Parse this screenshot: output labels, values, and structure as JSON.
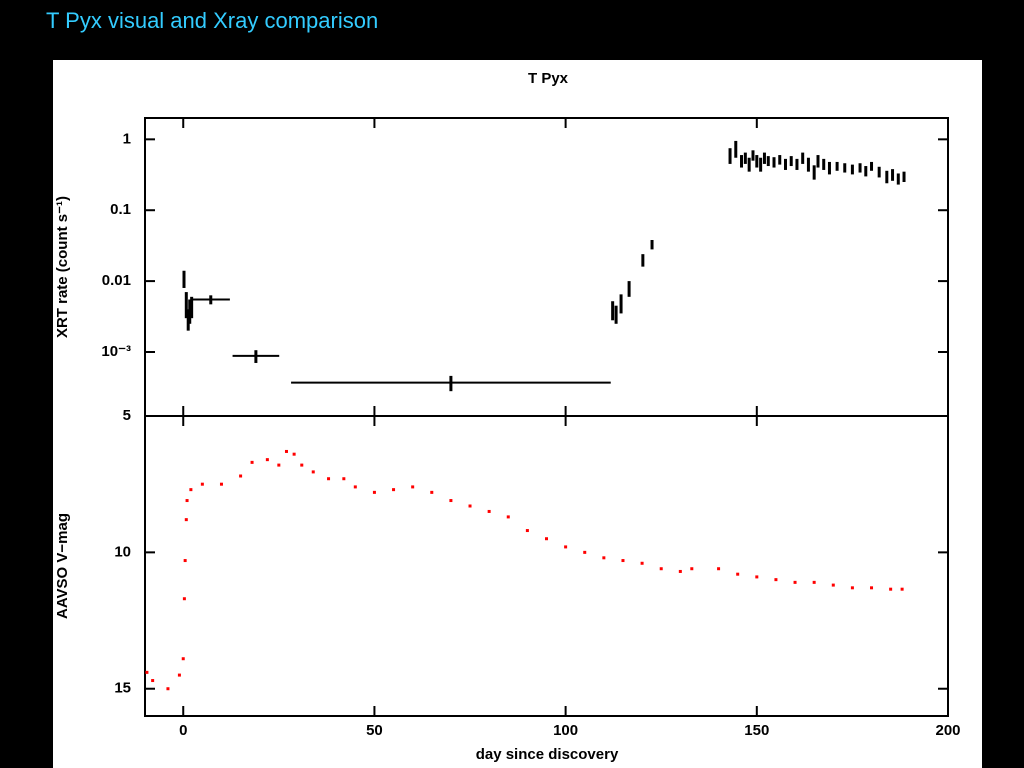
{
  "slide_title": "T Pyx visual and Xray comparison",
  "chart_data": [
    {
      "type": "errorbar",
      "title": "T Pyx",
      "ylabel": "XRT rate (count s⁻¹)",
      "log_y": true,
      "color": "#000000",
      "xlim": [
        -10,
        200
      ],
      "xticks": [
        0,
        50,
        100,
        150,
        200
      ],
      "ylim": [
        0.000125,
        2
      ],
      "yticks": [
        1,
        0.1,
        0.01,
        {
          "value": 0.001,
          "label": "10⁻³"
        }
      ],
      "x": [
        0.2,
        0.8,
        1.3,
        1.7,
        2.2,
        7.2,
        19,
        70,
        112.3,
        113.2,
        114.5,
        116.6,
        120.2,
        122.6,
        143,
        144.5,
        146,
        147,
        148,
        149,
        150,
        151,
        152,
        153,
        154.5,
        156,
        157.5,
        159,
        160.5,
        162,
        163.5,
        165,
        166,
        167.5,
        169,
        171,
        173,
        175,
        177,
        178.5,
        180,
        182,
        184,
        185.5,
        187,
        188.5
      ],
      "values": [
        0.011,
        0.005,
        0.003,
        0.004,
        0.0045,
        0.0055,
        0.00088,
        0.00037,
        0.004,
        0.0035,
        0.005,
        0.008,
        0.02,
        0.033,
        0.6,
        0.75,
        0.5,
        0.55,
        0.45,
        0.6,
        0.5,
        0.45,
        0.55,
        0.5,
        0.48,
        0.52,
        0.45,
        0.5,
        0.45,
        0.55,
        0.45,
        0.35,
        0.5,
        0.45,
        0.4,
        0.42,
        0.4,
        0.38,
        0.4,
        0.36,
        0.42,
        0.35,
        0.3,
        0.32,
        0.28,
        0.3
      ],
      "yerr": [
        0.003,
        0.002,
        0.001,
        0.0015,
        0.0015,
        0.0008,
        0.00018,
        9e-05,
        0.0012,
        0.001,
        0.0015,
        0.002,
        0.004,
        0.005,
        0.15,
        0.2,
        0.1,
        0.1,
        0.1,
        0.1,
        0.1,
        0.1,
        0.1,
        0.08,
        0.08,
        0.08,
        0.08,
        0.08,
        0.08,
        0.1,
        0.1,
        0.08,
        0.1,
        0.08,
        0.08,
        0.06,
        0.06,
        0.06,
        0.06,
        0.06,
        0.06,
        0.06,
        0.06,
        0.06,
        0.05,
        0.05
      ],
      "xerr": [
        null,
        null,
        null,
        null,
        null,
        5,
        6.1,
        41.8,
        null,
        null,
        null,
        null,
        null,
        null,
        null,
        null,
        null,
        null,
        null,
        null,
        null,
        null,
        null,
        null,
        null,
        null,
        null,
        null,
        null,
        null,
        null,
        null,
        null,
        null,
        null,
        null,
        null,
        null,
        null,
        null,
        null,
        null,
        null,
        null,
        null,
        null
      ]
    },
    {
      "type": "scatter",
      "xlabel": "day since discovery",
      "ylabel": "AAVSO V−mag",
      "y_inverted": true,
      "color": "#ff0000",
      "xlim": [
        -10,
        200
      ],
      "xticks": [
        0,
        50,
        100,
        150,
        200
      ],
      "ylim": [
        5,
        16
      ],
      "yticks": [
        5,
        10,
        15
      ],
      "x": [
        -9.5,
        -8,
        -4,
        -1,
        0,
        0.3,
        0.5,
        0.8,
        1,
        2,
        5,
        10,
        15,
        18,
        22,
        25,
        27,
        29,
        31,
        34,
        38,
        42,
        45,
        50,
        55,
        60,
        65,
        70,
        75,
        80,
        85,
        90,
        95,
        100,
        105,
        110,
        115,
        120,
        125,
        130,
        133,
        140,
        145,
        150,
        155,
        160,
        165,
        170,
        175,
        180,
        185,
        188
      ],
      "values": [
        14.4,
        14.7,
        15.0,
        14.5,
        13.9,
        11.7,
        10.3,
        8.8,
        8.1,
        7.7,
        7.5,
        7.5,
        7.2,
        6.7,
        6.6,
        6.8,
        6.3,
        6.4,
        6.8,
        7.05,
        7.3,
        7.3,
        7.6,
        7.8,
        7.7,
        7.6,
        7.8,
        8.1,
        8.3,
        8.5,
        8.7,
        9.2,
        9.5,
        9.8,
        10.0,
        10.2,
        10.3,
        10.4,
        10.6,
        10.7,
        10.6,
        10.6,
        10.8,
        10.9,
        11.0,
        11.1,
        11.1,
        11.2,
        11.3,
        11.3,
        11.35,
        11.35
      ]
    }
  ]
}
